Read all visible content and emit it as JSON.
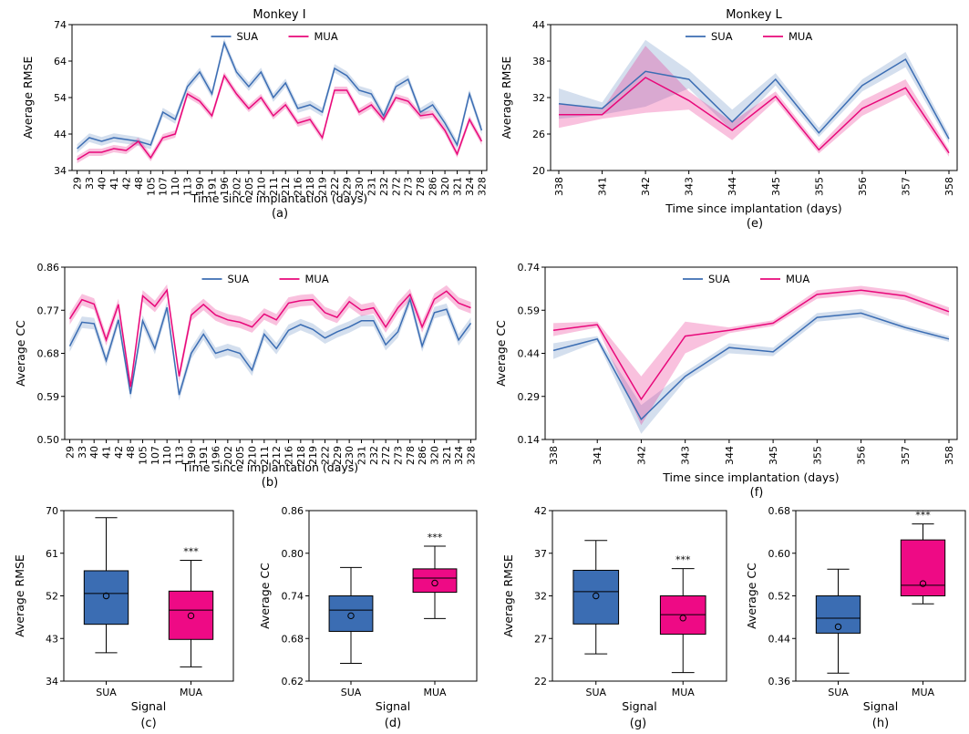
{
  "colors": {
    "SUA": "#3b6db3",
    "MUA": "#e8087a"
  },
  "chart_data": [
    {
      "id": "a",
      "type": "line",
      "panel_caption": "(a)",
      "title": "Monkey I",
      "xlabel": "Time since implantation (days)",
      "ylabel": "Average RMSE",
      "ylim": [
        34,
        74
      ],
      "yticks": [
        "34",
        "44",
        "54",
        "64",
        "74"
      ],
      "categories": [
        "29",
        "33",
        "40",
        "41",
        "42",
        "48",
        "105",
        "107",
        "110",
        "113",
        "190",
        "191",
        "196",
        "202",
        "205",
        "210",
        "211",
        "212",
        "216",
        "218",
        "219",
        "222",
        "229",
        "230",
        "231",
        "232",
        "272",
        "273",
        "278",
        "286",
        "320",
        "321",
        "324",
        "328"
      ],
      "legend": "top-center",
      "grid": false,
      "series": [
        {
          "name": "SUA",
          "values": [
            40,
            43,
            42,
            43,
            42.5,
            42,
            41,
            50,
            48,
            57,
            61,
            55,
            69,
            61,
            57,
            61,
            54,
            58,
            51,
            52,
            50,
            62,
            60,
            56,
            55,
            49,
            57,
            59,
            50,
            52,
            47,
            41,
            55,
            45
          ],
          "band": 1.2
        },
        {
          "name": "MUA",
          "values": [
            37,
            39,
            39,
            40,
            39.5,
            42,
            37.5,
            43,
            44,
            55,
            53,
            49,
            60,
            55,
            51,
            54,
            49,
            52,
            47,
            48,
            43,
            56,
            56,
            50,
            52,
            48,
            54,
            53,
            49,
            49.5,
            45,
            38.5,
            48,
            42
          ],
          "band": 1.0
        }
      ]
    },
    {
      "id": "e",
      "type": "line",
      "panel_caption": "(e)",
      "title": "Monkey L",
      "xlabel": "Time since implantation (days)",
      "ylabel": "Average RMSE",
      "ylim": [
        20,
        44
      ],
      "yticks": [
        "20",
        "26",
        "32",
        "38",
        "44"
      ],
      "categories": [
        "338",
        "341",
        "342",
        "343",
        "344",
        "345",
        "355",
        "356",
        "357",
        "358"
      ],
      "legend": "top-center",
      "grid": false,
      "series": [
        {
          "name": "SUA",
          "values": [
            31,
            30.2,
            36.3,
            35,
            28,
            35,
            26.2,
            34,
            38.3,
            25.2
          ],
          "band_lo": [
            28.5,
            29.2,
            30.5,
            33.5,
            26.5,
            34,
            25.5,
            33,
            37,
            24.5
          ],
          "band_hi": [
            33.5,
            31.2,
            41.5,
            36.5,
            30,
            36,
            27,
            35,
            39.5,
            26
          ]
        },
        {
          "name": "MUA",
          "values": [
            29.2,
            29.2,
            35.3,
            31.5,
            26.6,
            32.2,
            23.4,
            30.2,
            33.6,
            22.9
          ],
          "band_lo": [
            27,
            28.5,
            29.5,
            30,
            25,
            31.5,
            22.8,
            29,
            32.5,
            22.3
          ],
          "band_hi": [
            31,
            30,
            40.5,
            33,
            28,
            33,
            24,
            31.5,
            35,
            23.5
          ]
        }
      ]
    },
    {
      "id": "b",
      "type": "line",
      "panel_caption": "(b)",
      "title": "",
      "xlabel": "Time since implantation (days)",
      "ylabel": "Average CC",
      "ylim": [
        0.5,
        0.86
      ],
      "yticks": [
        "0.50",
        "0.59",
        "0.68",
        "0.77",
        "0.86"
      ],
      "categories": [
        "29",
        "33",
        "40",
        "41",
        "42",
        "48",
        "105",
        "107",
        "110",
        "113",
        "190",
        "191",
        "196",
        "202",
        "205",
        "210",
        "211",
        "212",
        "216",
        "218",
        "219",
        "222",
        "229",
        "230",
        "231",
        "232",
        "272",
        "273",
        "278",
        "286",
        "320",
        "321",
        "324",
        "328"
      ],
      "legend": "top-center",
      "grid": false,
      "series": [
        {
          "name": "SUA",
          "values": [
            0.695,
            0.745,
            0.742,
            0.665,
            0.75,
            0.595,
            0.748,
            0.69,
            0.776,
            0.593,
            0.68,
            0.72,
            0.68,
            0.688,
            0.68,
            0.645,
            0.72,
            0.69,
            0.728,
            0.74,
            0.73,
            0.712,
            0.725,
            0.735,
            0.748,
            0.748,
            0.698,
            0.725,
            0.793,
            0.695,
            0.765,
            0.772,
            0.708,
            0.743
          ],
          "band": 0.012
        },
        {
          "name": "MUA",
          "values": [
            0.752,
            0.792,
            0.783,
            0.708,
            0.782,
            0.61,
            0.8,
            0.778,
            0.812,
            0.632,
            0.76,
            0.782,
            0.76,
            0.75,
            0.745,
            0.735,
            0.762,
            0.75,
            0.785,
            0.79,
            0.792,
            0.765,
            0.755,
            0.788,
            0.77,
            0.775,
            0.735,
            0.775,
            0.803,
            0.735,
            0.793,
            0.81,
            0.785,
            0.775
          ],
          "band": 0.012
        }
      ]
    },
    {
      "id": "f",
      "type": "line",
      "panel_caption": "(f)",
      "title": "",
      "xlabel": "Time since implantation (days)",
      "ylabel": "Average CC",
      "ylim": [
        0.14,
        0.74
      ],
      "yticks": [
        "0.14",
        "0.29",
        "0.44",
        "0.59",
        "0.74"
      ],
      "categories": [
        "338",
        "341",
        "342",
        "343",
        "344",
        "345",
        "355",
        "356",
        "357",
        "358"
      ],
      "legend": "top-center",
      "grid": false,
      "series": [
        {
          "name": "SUA",
          "values": [
            0.45,
            0.49,
            0.21,
            0.36,
            0.46,
            0.445,
            0.565,
            0.58,
            0.53,
            0.49
          ],
          "band_lo": [
            0.42,
            0.48,
            0.16,
            0.345,
            0.44,
            0.43,
            0.55,
            0.565,
            0.52,
            0.48
          ],
          "band_hi": [
            0.475,
            0.5,
            0.26,
            0.375,
            0.475,
            0.46,
            0.58,
            0.595,
            0.54,
            0.5
          ]
        },
        {
          "name": "MUA",
          "values": [
            0.52,
            0.54,
            0.28,
            0.5,
            0.52,
            0.545,
            0.645,
            0.66,
            0.64,
            0.585
          ],
          "band_lo": [
            0.5,
            0.53,
            0.19,
            0.44,
            0.51,
            0.535,
            0.63,
            0.645,
            0.625,
            0.57
          ],
          "band_hi": [
            0.545,
            0.55,
            0.36,
            0.55,
            0.53,
            0.555,
            0.66,
            0.675,
            0.655,
            0.6
          ]
        }
      ]
    },
    {
      "id": "c",
      "type": "box",
      "panel_caption": "(c)",
      "xlabel": "Signal",
      "ylabel": "Average RMSE",
      "ylim": [
        34,
        70
      ],
      "yticks": [
        "34",
        "43",
        "52",
        "61",
        "70"
      ],
      "categories": [
        "SUA",
        "MUA"
      ],
      "annotation": "***",
      "boxes": [
        {
          "name": "SUA",
          "whislo": 40,
          "q1": 46,
          "med": 52.5,
          "q3": 57.3,
          "whishi": 68.5,
          "mean": 52
        },
        {
          "name": "MUA",
          "whislo": 37,
          "q1": 42.8,
          "med": 49,
          "q3": 53,
          "whishi": 59.5,
          "mean": 47.8
        }
      ]
    },
    {
      "id": "d",
      "type": "box",
      "panel_caption": "(d)",
      "xlabel": "Signal",
      "ylabel": "Average CC",
      "ylim": [
        0.62,
        0.86
      ],
      "yticks": [
        "0.62",
        "0.68",
        "0.74",
        "0.80",
        "0.86"
      ],
      "categories": [
        "SUA",
        "MUA"
      ],
      "annotation": "***",
      "boxes": [
        {
          "name": "SUA",
          "whislo": 0.645,
          "q1": 0.69,
          "med": 0.72,
          "q3": 0.74,
          "whishi": 0.78,
          "mean": 0.712
        },
        {
          "name": "MUA",
          "whislo": 0.708,
          "q1": 0.745,
          "med": 0.765,
          "q3": 0.778,
          "whishi": 0.81,
          "mean": 0.758
        }
      ]
    },
    {
      "id": "g",
      "type": "box",
      "panel_caption": "(g)",
      "xlabel": "Signal",
      "ylabel": "Average RMSE",
      "ylim": [
        22,
        42
      ],
      "yticks": [
        "22",
        "27",
        "32",
        "37",
        "42"
      ],
      "categories": [
        "SUA",
        "MUA"
      ],
      "annotation": "***",
      "boxes": [
        {
          "name": "SUA",
          "whislo": 25.2,
          "q1": 28.7,
          "med": 32.5,
          "q3": 35,
          "whishi": 38.5,
          "mean": 32
        },
        {
          "name": "MUA",
          "whislo": 23,
          "q1": 27.5,
          "med": 29.8,
          "q3": 32,
          "whishi": 35.2,
          "mean": 29.4
        }
      ]
    },
    {
      "id": "h",
      "type": "box",
      "panel_caption": "(h)",
      "xlabel": "Signal",
      "ylabel": "Average CC",
      "ylim": [
        0.36,
        0.68
      ],
      "yticks": [
        "0.36",
        "0.44",
        "0.52",
        "0.60",
        "0.68"
      ],
      "categories": [
        "SUA",
        "MUA"
      ],
      "annotation": "***",
      "boxes": [
        {
          "name": "SUA",
          "whislo": 0.375,
          "q1": 0.45,
          "med": 0.478,
          "q3": 0.52,
          "whishi": 0.57,
          "mean": 0.462
        },
        {
          "name": "MUA",
          "whislo": 0.505,
          "q1": 0.52,
          "med": 0.54,
          "q3": 0.625,
          "whishi": 0.655,
          "mean": 0.543
        }
      ]
    }
  ]
}
